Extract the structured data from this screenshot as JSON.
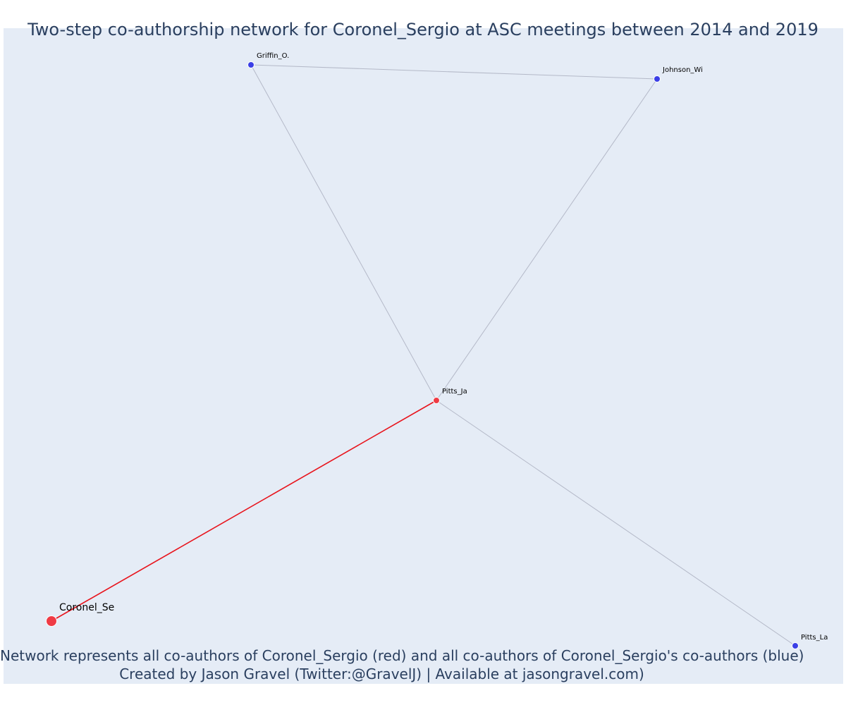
{
  "title": "Two-step co-authorship network for Coronel_Sergio at ASC meetings between 2014 and 2019",
  "caption": {
    "line1": "Network represents all co-authors of Coronel_Sergio (red) and all co-authors of Coronel_Sergio's co-authors (blue)",
    "line2": "Created by Jason Gravel (Twitter:@GravelJ) | Available at jasongravel.com)"
  },
  "colors": {
    "background": "#e5ecf6",
    "text": "#2a3f5f",
    "red_node": "#ef3b45",
    "blue_node": "#3b3fe6",
    "red_edge": "#e8141c",
    "gray_edge": "#b4b9c8"
  },
  "network": {
    "nodes": [
      {
        "id": "Coronel_Se",
        "label": "Coronel_Se",
        "group": "focal"
      },
      {
        "id": "Pitts_Ja",
        "label": "Pitts_Ja",
        "group": "co-author"
      },
      {
        "id": "Griffin_O.",
        "label": "Griffin_O.",
        "group": "second-step"
      },
      {
        "id": "Johnson_Wi",
        "label": "Johnson_Wi",
        "group": "second-step"
      },
      {
        "id": "Pitts_La",
        "label": "Pitts_La",
        "group": "second-step"
      }
    ],
    "edges": [
      {
        "source": "Coronel_Se",
        "target": "Pitts_Ja",
        "type": "direct"
      },
      {
        "source": "Pitts_Ja",
        "target": "Griffin_O.",
        "type": "second-step"
      },
      {
        "source": "Pitts_Ja",
        "target": "Johnson_Wi",
        "type": "second-step"
      },
      {
        "source": "Pitts_Ja",
        "target": "Pitts_La",
        "type": "second-step"
      },
      {
        "source": "Griffin_O.",
        "target": "Johnson_Wi",
        "type": "second-step"
      }
    ]
  }
}
